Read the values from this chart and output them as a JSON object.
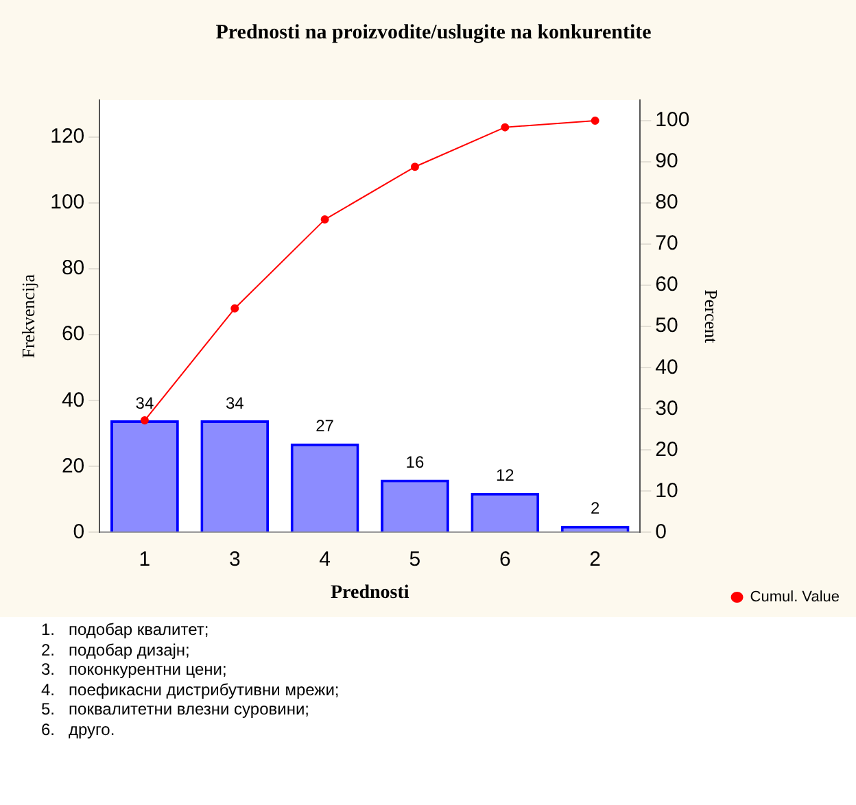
{
  "chart_data": {
    "type": "bar",
    "title": "Prednosti na proizvodite/uslugite na konkurentite",
    "xlabel": "Prednosti",
    "ylabel": "Frekvencija",
    "y2label": "Percent",
    "categories": [
      "1",
      "3",
      "4",
      "5",
      "6",
      "2"
    ],
    "series": [
      {
        "color": "#0000ff",
        "values": [
          34,
          34,
          27,
          16,
          12,
          2
        ],
        "value_labels": [
          "34",
          "34",
          "27",
          "16",
          "12",
          "2"
        ]
      },
      {
        "type": "line",
        "name": "Cumul. Value",
        "axis": "y2",
        "color": "#ff0000",
        "values": [
          27.2,
          54.4,
          76,
          88.8,
          98.4,
          100
        ]
      }
    ],
    "ylim": [
      0,
      131.25
    ],
    "yticks": [
      0,
      20,
      40,
      60,
      80,
      100,
      120
    ],
    "y2lim": [
      0,
      105
    ],
    "y2ticks": [
      0,
      10,
      20,
      30,
      40,
      50,
      60,
      70,
      80,
      90,
      100
    ],
    "grid": false,
    "legend": "right",
    "marker": "circle",
    "annotations": [
      "1.\tподобар квалитет;",
      "2.\tподобар дизајн;",
      "3.\tпоконкурентни цени;",
      "4.\tпоефикасни дистрибутивни мрежи;",
      "5.\tпоквалитетни влезни суровини;",
      "6.\tдруго."
    ]
  }
}
